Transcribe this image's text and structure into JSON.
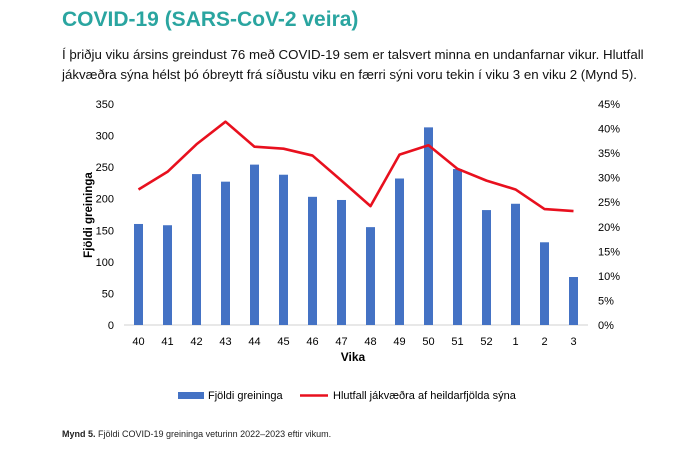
{
  "heading": "COVID-19 (SARS-CoV-2 veira)",
  "intro": "Í þriðju viku ársins greindust 76 með COVID-19 sem er talsvert minna en undanfarnar vikur. Hlutfall jákvæðra sýna hélst þó óbreytt frá síðustu viku en færri sýni voru tekin í viku 3 en viku 2 (Mynd 5).",
  "caption": {
    "label": "Mynd 5.",
    "text": "Fjöldi COVID-19 greininga veturinn 2022–2023 eftir vikum."
  },
  "colors": {
    "heading": "#2aa5a0",
    "bars": "#4472c4",
    "line": "#e8101e"
  },
  "chart_data": {
    "type": "bar+line",
    "categories": [
      "40",
      "41",
      "42",
      "43",
      "44",
      "45",
      "46",
      "47",
      "48",
      "49",
      "50",
      "51",
      "52",
      "1",
      "2",
      "3"
    ],
    "xlabel": "Vika",
    "ylabel": "Fjöldi greininga",
    "ylim": [
      0,
      350
    ],
    "y_ticks": [
      0,
      50,
      100,
      150,
      200,
      250,
      300,
      350
    ],
    "y2lim": [
      0,
      45
    ],
    "y2_ticks": [
      "0%",
      "5%",
      "10%",
      "15%",
      "20%",
      "25%",
      "30%",
      "35%",
      "40%",
      "45%"
    ],
    "grid": false,
    "legend_position": "bottom",
    "series": [
      {
        "name": "Fjöldi greininga",
        "kind": "bar",
        "axis": "left",
        "values": [
          160,
          158,
          239,
          227,
          254,
          238,
          203,
          198,
          155,
          232,
          313,
          247,
          182,
          192,
          131,
          76
        ]
      },
      {
        "name": "Hlutfall jákvæðra af heildarfjölda sýna",
        "kind": "line",
        "axis": "right",
        "unit": "%",
        "values": [
          27.6,
          31.2,
          36.8,
          41.4,
          36.3,
          35.9,
          34.5,
          29.4,
          24.2,
          34.7,
          36.6,
          31.8,
          29.4,
          27.6,
          23.6,
          23.2
        ]
      }
    ]
  }
}
